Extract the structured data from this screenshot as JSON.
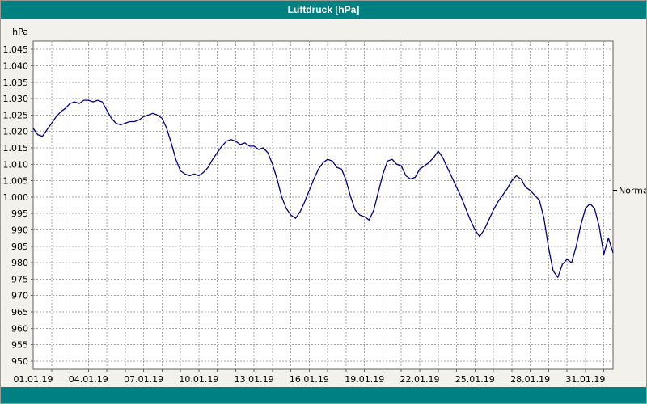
{
  "window": {
    "title": "Luftdruck [hPa]"
  },
  "theme": {
    "titlebar_bg": "#008080",
    "titlebar_fg": "#FFFFFF",
    "canvas_bg": "#F2F1EC",
    "plot_bg": "#FFFFFF",
    "plot_border": "#606060",
    "grid_color": "#A6A6A6",
    "line_color": "#000080",
    "text_color": "#000000"
  },
  "chart_data": {
    "type": "line",
    "title": "Luftdruck [hPa]",
    "ylabel": "hPa",
    "xlabel": "",
    "legend": "none",
    "grid": "dashed",
    "ylim": [
      947.5,
      1047.5
    ],
    "xlim_days": [
      0,
      31.5
    ],
    "sample_step_days": 0.25,
    "y_ticks": [
      {
        "value": 1045,
        "label": "1.045"
      },
      {
        "value": 1040,
        "label": "1.040"
      },
      {
        "value": 1035,
        "label": "1.035"
      },
      {
        "value": 1030,
        "label": "1.030"
      },
      {
        "value": 1025,
        "label": "1.025"
      },
      {
        "value": 1020,
        "label": "1.020"
      },
      {
        "value": 1015,
        "label": "1.015"
      },
      {
        "value": 1010,
        "label": "1.010"
      },
      {
        "value": 1005,
        "label": "1.005"
      },
      {
        "value": 1000,
        "label": "1.000"
      },
      {
        "value": 995,
        "label": "995"
      },
      {
        "value": 990,
        "label": "990"
      },
      {
        "value": 985,
        "label": "985"
      },
      {
        "value": 980,
        "label": "980"
      },
      {
        "value": 975,
        "label": "975"
      },
      {
        "value": 970,
        "label": "970"
      },
      {
        "value": 965,
        "label": "965"
      },
      {
        "value": 960,
        "label": "960"
      },
      {
        "value": 955,
        "label": "955"
      },
      {
        "value": 950,
        "label": "950"
      }
    ],
    "x_ticks": [
      {
        "day": 0,
        "label": "01.01.19"
      },
      {
        "day": 3,
        "label": "04.01.19"
      },
      {
        "day": 6,
        "label": "07.01.19"
      },
      {
        "day": 9,
        "label": "10.01.19"
      },
      {
        "day": 12,
        "label": "13.01.19"
      },
      {
        "day": 15,
        "label": "16.01.19"
      },
      {
        "day": 18,
        "label": "19.01.19"
      },
      {
        "day": 21,
        "label": "22.01.19"
      },
      {
        "day": 24,
        "label": "25.01.19"
      },
      {
        "day": 27,
        "label": "28.01.19"
      },
      {
        "day": 30,
        "label": "31.01.19"
      }
    ],
    "values": [
      1021,
      1019,
      1018.5,
      1020.5,
      1022.5,
      1024.5,
      1026,
      1027,
      1028.5,
      1029,
      1028.5,
      1029.5,
      1029.5,
      1029,
      1029.5,
      1029,
      1026.5,
      1024,
      1022.5,
      1022,
      1022.5,
      1023,
      1023,
      1023.5,
      1024.5,
      1025,
      1025.5,
      1025,
      1024,
      1021,
      1016.5,
      1011.5,
      1008,
      1007,
      1006.5,
      1007,
      1006.5,
      1007.5,
      1009,
      1011.5,
      1013.5,
      1015.5,
      1017,
      1017.5,
      1017,
      1016,
      1016.5,
      1015.5,
      1015.5,
      1014.5,
      1015,
      1013.5,
      1010,
      1005.5,
      1000,
      996.5,
      994.5,
      993.5,
      995.5,
      998.5,
      1002,
      1005.5,
      1008.5,
      1010.5,
      1011.5,
      1011,
      1009,
      1008.5,
      1005,
      1000,
      996,
      994.5,
      994,
      993,
      996,
      1001.5,
      1007,
      1011,
      1011.5,
      1010,
      1009.5,
      1006.5,
      1005.5,
      1006,
      1008.5,
      1009.5,
      1010.5,
      1012,
      1014,
      1012,
      1009,
      1006,
      1003,
      1000,
      996.5,
      993,
      990,
      988,
      990,
      993,
      996,
      998.5,
      1000.5,
      1002.5,
      1005,
      1006.5,
      1005.5,
      1003,
      1002,
      1000.5,
      999,
      993.5,
      984.5,
      977.5,
      975.5,
      979.5,
      981,
      980,
      985,
      991.5,
      996.5,
      998,
      996.5,
      991,
      982.5,
      987.5,
      983
    ],
    "annotation": {
      "label": "Normal",
      "value": 1002
    }
  }
}
